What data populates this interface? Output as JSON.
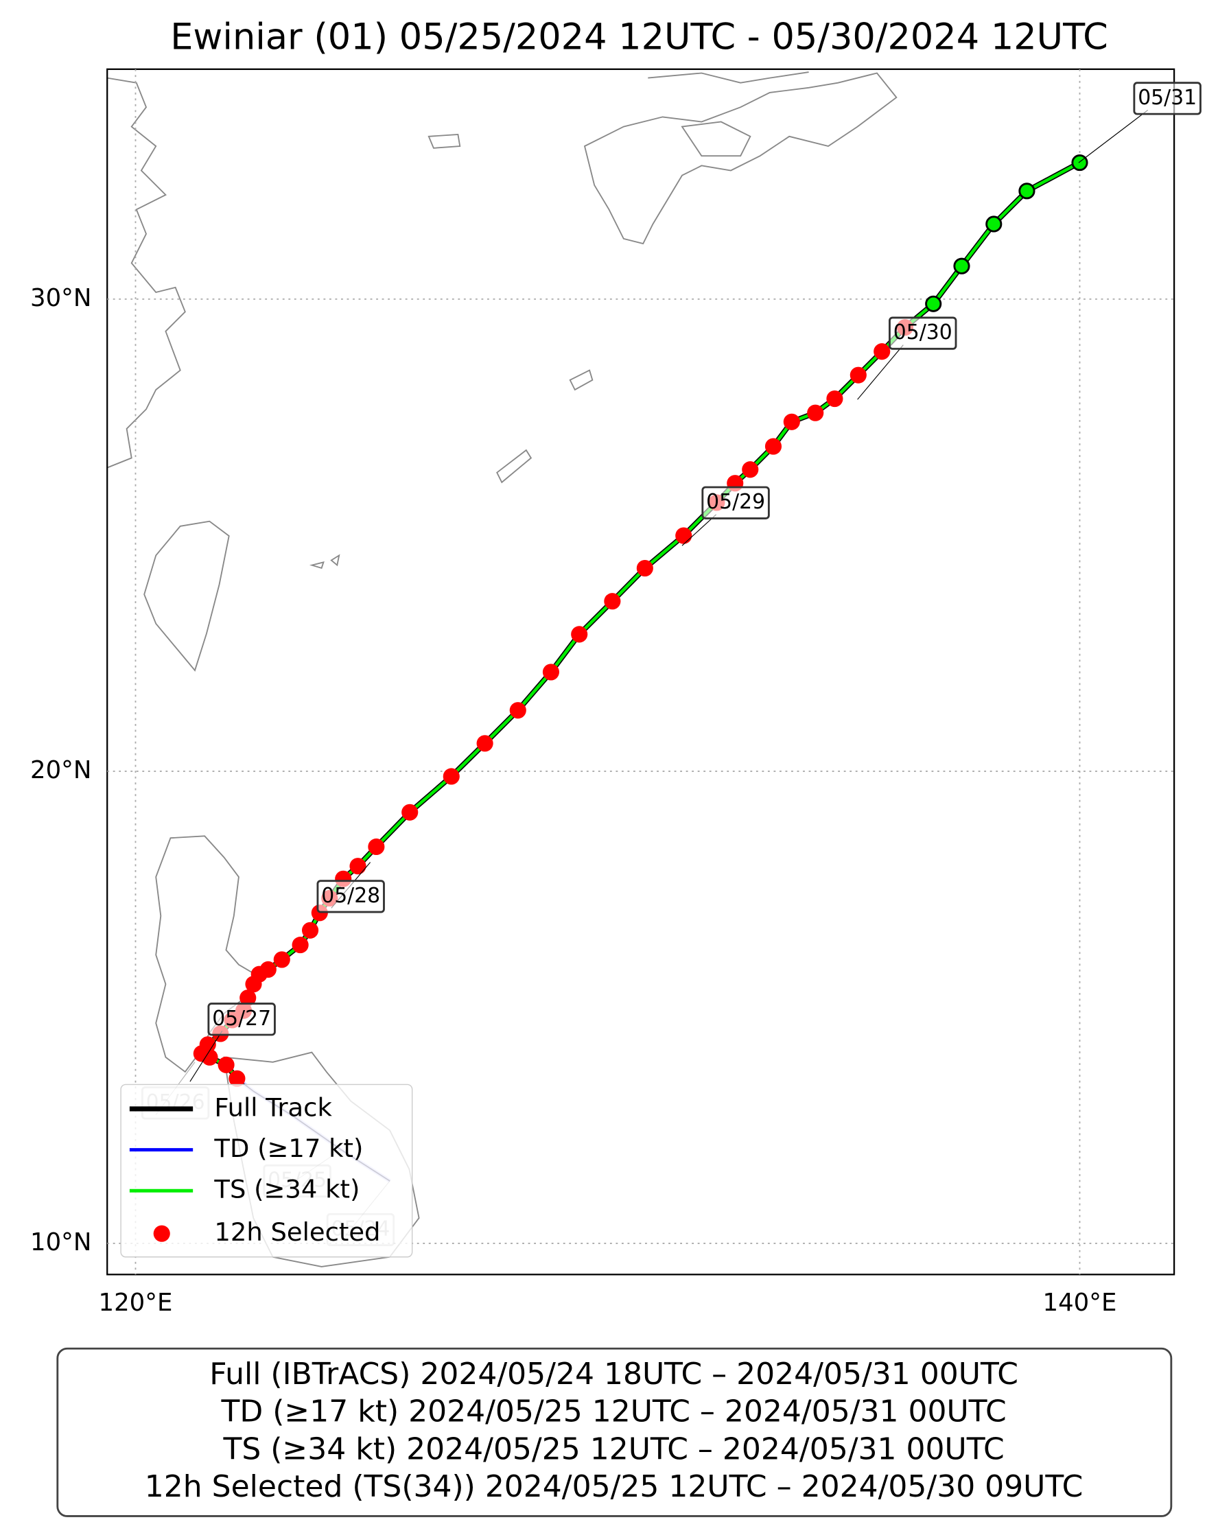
{
  "chart_data": {
    "type": "track",
    "title": "Ewiniar (01)   05/25/2024 12UTC - 05/30/2024 12UTC",
    "xlim": [
      119.4,
      142.0
    ],
    "ylim": [
      9.34,
      34.87
    ],
    "xticks": [
      {
        "value": 120,
        "label": "120°E"
      },
      {
        "value": 140,
        "label": "140°E"
      }
    ],
    "yticks": [
      {
        "value": 10,
        "label": "10°N"
      },
      {
        "value": 20,
        "label": "20°N"
      },
      {
        "value": 30,
        "label": "30°N"
      }
    ],
    "grid": true,
    "legend": "lower left",
    "series": [
      {
        "name": "Full Track",
        "color": "#000000",
        "x": [
          125.39,
          124.36,
          123.33,
          122.5,
          122.15,
          121.92,
          121.57,
          121.4,
          121.53,
          121.8,
          122.05,
          122.29,
          122.38,
          122.5,
          122.62,
          122.81,
          123.1,
          123.49,
          123.7,
          123.9,
          124.11,
          124.4,
          124.71,
          125.1,
          125.81,
          126.69,
          127.4,
          128.1,
          128.8,
          129.4,
          130.1,
          130.79,
          131.61,
          132.31,
          132.7,
          133.02,
          133.51,
          133.9,
          134.4,
          134.81,
          135.31,
          135.81,
          136.3,
          136.9,
          137.5,
          138.18,
          138.88,
          140.0
        ],
        "values": [
          11.32,
          11.98,
          12.7,
          13.22,
          13.49,
          13.78,
          13.94,
          14.02,
          14.21,
          14.44,
          14.73,
          14.93,
          15.2,
          15.49,
          15.7,
          15.8,
          16.01,
          16.32,
          16.63,
          17.0,
          17.31,
          17.72,
          17.99,
          18.4,
          19.13,
          19.89,
          20.59,
          21.29,
          22.1,
          22.9,
          23.6,
          24.3,
          24.99,
          25.69,
          26.1,
          26.39,
          26.88,
          27.4,
          27.59,
          27.89,
          28.39,
          28.89,
          29.4,
          29.9,
          30.7,
          31.59,
          32.29,
          32.89
        ]
      },
      {
        "name": "TD (≥17 kt)",
        "color": "#0000ff",
        "x": [
          122.15,
          121.92,
          121.57,
          121.4,
          121.53,
          121.8,
          122.05,
          122.29,
          122.38,
          122.5,
          122.62,
          122.81,
          123.1,
          123.49,
          123.7,
          123.9,
          124.11,
          124.4,
          124.71,
          125.1,
          125.81,
          126.69,
          127.4,
          128.1,
          128.8,
          129.4,
          130.1,
          130.79,
          131.61,
          132.31,
          132.7,
          133.02,
          133.51,
          133.9,
          134.4,
          134.81,
          135.31,
          135.81,
          136.3,
          136.9,
          137.5,
          138.18,
          138.88,
          140.0
        ],
        "values": [
          13.49,
          13.78,
          13.94,
          14.02,
          14.21,
          14.44,
          14.73,
          14.93,
          15.2,
          15.49,
          15.7,
          15.8,
          16.01,
          16.32,
          16.63,
          17.0,
          17.31,
          17.72,
          17.99,
          18.4,
          19.13,
          19.89,
          20.59,
          21.29,
          22.1,
          22.9,
          23.6,
          24.3,
          24.99,
          25.69,
          26.1,
          26.39,
          26.88,
          27.4,
          27.59,
          27.89,
          28.39,
          28.89,
          29.4,
          29.9,
          30.7,
          31.59,
          32.29,
          32.89
        ]
      },
      {
        "name": "TS (≥34 kt)",
        "color": "#00ee00",
        "x": [
          122.15,
          121.92,
          121.57,
          121.4,
          121.53,
          121.8,
          122.05,
          122.29,
          122.38,
          122.5,
          122.62,
          122.81,
          123.1,
          123.49,
          123.7,
          123.9,
          124.11,
          124.4,
          124.71,
          125.1,
          125.81,
          126.69,
          127.4,
          128.1,
          128.8,
          129.4,
          130.1,
          130.79,
          131.61,
          132.31,
          132.7,
          133.02,
          133.51,
          133.9,
          134.4,
          134.81,
          135.31,
          135.81,
          136.3,
          136.9,
          137.5,
          138.18,
          138.88,
          140.0
        ],
        "values": [
          13.49,
          13.78,
          13.94,
          14.02,
          14.21,
          14.44,
          14.73,
          14.93,
          15.2,
          15.49,
          15.7,
          15.8,
          16.01,
          16.32,
          16.63,
          17.0,
          17.31,
          17.72,
          17.99,
          18.4,
          19.13,
          19.89,
          20.59,
          21.29,
          22.1,
          22.9,
          23.6,
          24.3,
          24.99,
          25.69,
          26.1,
          26.39,
          26.88,
          27.4,
          27.59,
          27.89,
          28.39,
          28.89,
          29.4,
          29.9,
          30.7,
          31.59,
          32.29,
          32.89
        ]
      },
      {
        "name": "12h Selected",
        "color": "#ff0000",
        "x": [
          122.15,
          121.92,
          121.57,
          121.4,
          121.53,
          121.8,
          122.05,
          122.29,
          122.38,
          122.5,
          122.62,
          122.81,
          123.1,
          123.49,
          123.7,
          123.9,
          124.11,
          124.4,
          124.71,
          125.1,
          125.81,
          126.69,
          127.4,
          128.1,
          128.8,
          129.4,
          130.1,
          130.79,
          131.61,
          132.31,
          132.7,
          133.02,
          133.51,
          133.9,
          134.4,
          134.81,
          135.31,
          135.81,
          136.3
        ],
        "values": [
          13.49,
          13.78,
          13.94,
          14.02,
          14.21,
          14.44,
          14.73,
          14.93,
          15.2,
          15.49,
          15.7,
          15.8,
          16.01,
          16.32,
          16.63,
          17.0,
          17.31,
          17.72,
          17.99,
          18.4,
          19.13,
          19.89,
          20.59,
          21.29,
          22.1,
          22.9,
          23.6,
          24.3,
          24.99,
          25.69,
          26.1,
          26.39,
          26.88,
          27.4,
          27.59,
          27.89,
          28.39,
          28.89,
          29.4
        ]
      }
    ],
    "date_labels": [
      "05/24",
      "05/25",
      "05/26",
      "05/27",
      "05/28",
      "05/29",
      "05/30",
      "05/31"
    ],
    "footer": [
      "Full (IBTrACS)   2024/05/24 18UTC – 2024/05/31 00UTC",
      "TD (≥17 kt)   2024/05/25 12UTC – 2024/05/31 00UTC",
      "TS (≥34 kt)   2024/05/25 12UTC – 2024/05/31 00UTC",
      "12h Selected (TS(34))   2024/05/25 12UTC – 2024/05/30 09UTC"
    ]
  }
}
